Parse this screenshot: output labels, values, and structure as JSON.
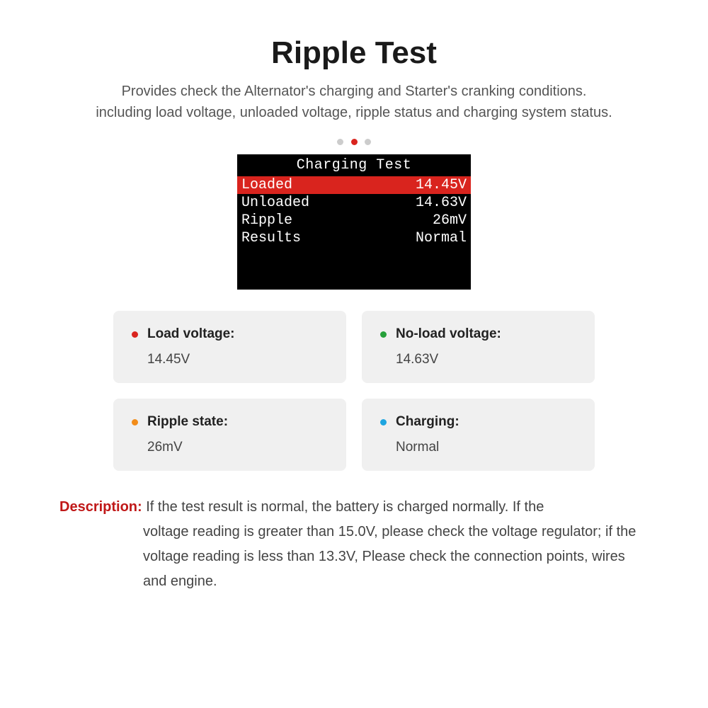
{
  "header": {
    "title": "Ripple Test",
    "subtitle_line1": "Provides check the Alternator's charging and Starter's cranking conditions.",
    "subtitle_line2": "including load voltage, unloaded voltage, ripple status and charging system status."
  },
  "carousel": {
    "total": 3,
    "active_index": 1,
    "inactive_color": "#cccccc",
    "active_color": "#d9241e"
  },
  "device_screen": {
    "title": "Charging Test",
    "background_color": "#000000",
    "text_color": "#ffffff",
    "highlight_color": "#d9241e",
    "font_family": "Courier New",
    "rows": [
      {
        "label": "Loaded",
        "value": "14.45V",
        "highlight": true
      },
      {
        "label": "Unloaded",
        "value": "14.63V",
        "highlight": false
      },
      {
        "label": "Ripple",
        "value": "26mV",
        "highlight": false
      },
      {
        "label": "Results",
        "value": "Normal",
        "highlight": false
      }
    ]
  },
  "info_cards": {
    "background_color": "#f0f0f0",
    "border_radius": 8,
    "cards": [
      {
        "bullet_color": "#d9241e",
        "label": "Load voltage:",
        "value": "14.45V"
      },
      {
        "bullet_color": "#26a03a",
        "label": "No-load voltage:",
        "value": "14.63V"
      },
      {
        "bullet_color": "#f28c1a",
        "label": "Ripple state:",
        "value": "26mV"
      },
      {
        "bullet_color": "#1ea5e0",
        "label": "Charging:",
        "value": "Normal"
      }
    ]
  },
  "description": {
    "label": "Description:",
    "label_color": "#c01818",
    "text_first": " If the test result is normal, the battery is charged normally. If the",
    "text_rest": "voltage reading is greater than 15.0V, please check the voltage regulator; if the voltage reading is less than 13.3V, Please check the connection points, wires and engine."
  }
}
